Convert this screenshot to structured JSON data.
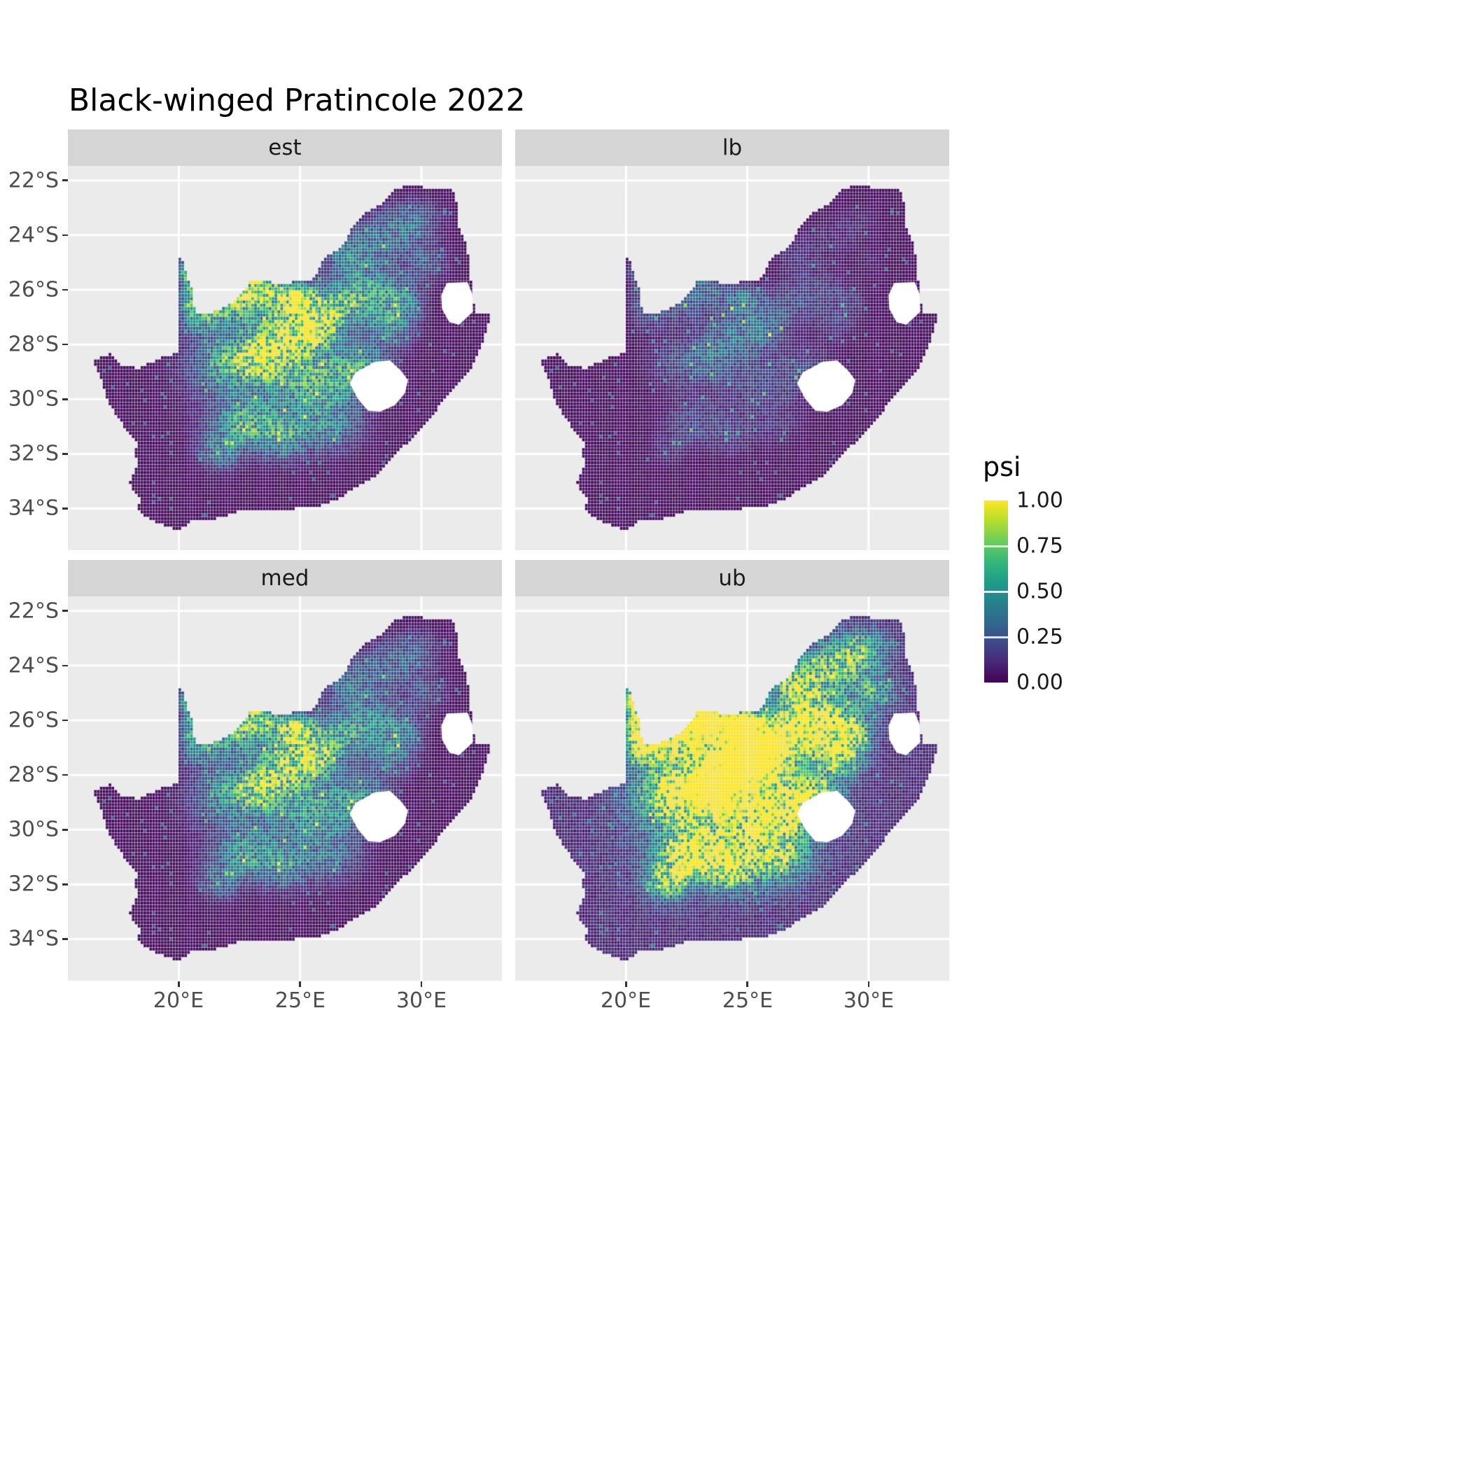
{
  "chart_data": {
    "type": "heatmap",
    "title": "Black-winged Pratincole 2022",
    "facets": [
      {
        "label": "est"
      },
      {
        "label": "lb"
      },
      {
        "label": "med"
      },
      {
        "label": "ub"
      }
    ],
    "legend": {
      "title": "psi",
      "ticks": [
        "1.00",
        "0.75",
        "0.50",
        "0.25",
        "0.00"
      ],
      "tick_values": [
        1.0,
        0.75,
        0.5,
        0.25,
        0.0
      ]
    },
    "x_ticks": {
      "labels": [
        "20°E",
        "25°E",
        "30°E"
      ],
      "lons": [
        20,
        25,
        30
      ]
    },
    "y_ticks": {
      "labels": [
        "22°S",
        "24°S",
        "26°S",
        "28°S",
        "30°S",
        "32°S",
        "34°S"
      ],
      "lats": [
        -22,
        -24,
        -26,
        -28,
        -30,
        -32,
        -34
      ]
    },
    "axes": {
      "lon_min": 15.43,
      "lon_max": 33.32,
      "lat_top": -21.47,
      "lat_bottom": -35.52,
      "grid": true,
      "legend_position": "right"
    },
    "colors": {
      "panel_bg": "#EBEBEB",
      "strip_bg": "#D5D5D5",
      "grid": "#FFFFFF",
      "axis_text": "#4D4D4D",
      "hole_fill": "#FFFFFF",
      "viridis": [
        "#440154",
        "#482878",
        "#3E4A89",
        "#31688E",
        "#26828E",
        "#1F9E89",
        "#35B779",
        "#6DCD59",
        "#B4DE2C",
        "#FDE725"
      ]
    },
    "map": {
      "region": "South Africa",
      "outer": [
        [
          16.45,
          -28.58
        ],
        [
          17.15,
          -28.35
        ],
        [
          17.6,
          -28.72
        ],
        [
          18.3,
          -28.88
        ],
        [
          19.2,
          -28.52
        ],
        [
          19.99,
          -28.32
        ],
        [
          19.99,
          -24.77
        ],
        [
          20.18,
          -25.0
        ],
        [
          20.4,
          -25.6
        ],
        [
          20.6,
          -26.15
        ],
        [
          20.68,
          -26.85
        ],
        [
          21.4,
          -26.83
        ],
        [
          22.0,
          -26.62
        ],
        [
          22.65,
          -26.1
        ],
        [
          23.0,
          -25.62
        ],
        [
          23.5,
          -25.68
        ],
        [
          24.1,
          -25.78
        ],
        [
          24.8,
          -25.72
        ],
        [
          25.35,
          -25.68
        ],
        [
          25.7,
          -25.45
        ],
        [
          25.95,
          -24.9
        ],
        [
          26.45,
          -24.6
        ],
        [
          26.9,
          -24.25
        ],
        [
          27.2,
          -23.65
        ],
        [
          27.7,
          -23.2
        ],
        [
          28.3,
          -22.9
        ],
        [
          28.95,
          -22.32
        ],
        [
          29.45,
          -22.18
        ],
        [
          30.1,
          -22.25
        ],
        [
          30.7,
          -22.3
        ],
        [
          31.3,
          -22.38
        ],
        [
          31.5,
          -22.95
        ],
        [
          31.55,
          -23.65
        ],
        [
          31.8,
          -24.2
        ],
        [
          31.95,
          -24.75
        ],
        [
          32.0,
          -25.3
        ],
        [
          32.08,
          -25.85
        ],
        [
          32.15,
          -26.3
        ],
        [
          32.22,
          -26.85
        ],
        [
          32.9,
          -26.85
        ],
        [
          32.55,
          -27.95
        ],
        [
          32.25,
          -28.55
        ],
        [
          31.85,
          -29.15
        ],
        [
          31.05,
          -29.87
        ],
        [
          30.35,
          -30.75
        ],
        [
          29.65,
          -31.4
        ],
        [
          28.85,
          -32.1
        ],
        [
          28.1,
          -32.85
        ],
        [
          27.2,
          -33.3
        ],
        [
          26.45,
          -33.72
        ],
        [
          25.65,
          -33.95
        ],
        [
          24.85,
          -34.0
        ],
        [
          24.0,
          -34.12
        ],
        [
          23.3,
          -34.08
        ],
        [
          22.55,
          -34.05
        ],
        [
          22.1,
          -34.22
        ],
        [
          21.35,
          -34.42
        ],
        [
          20.55,
          -34.46
        ],
        [
          20.0,
          -34.82
        ],
        [
          19.35,
          -34.6
        ],
        [
          18.85,
          -34.4
        ],
        [
          18.45,
          -34.2
        ],
        [
          18.3,
          -33.95
        ],
        [
          18.42,
          -33.7
        ],
        [
          18.22,
          -33.4
        ],
        [
          17.95,
          -33.1
        ],
        [
          18.12,
          -32.75
        ],
        [
          18.3,
          -32.5
        ],
        [
          18.22,
          -31.9
        ],
        [
          18.3,
          -31.55
        ],
        [
          17.85,
          -31.15
        ],
        [
          17.55,
          -30.75
        ],
        [
          17.2,
          -30.25
        ],
        [
          17.0,
          -29.85
        ],
        [
          16.85,
          -29.35
        ],
        [
          16.6,
          -28.9
        ]
      ],
      "holes": [
        [
          [
            27.55,
            -28.9
          ],
          [
            28.1,
            -28.63
          ],
          [
            28.7,
            -28.58
          ],
          [
            29.15,
            -28.95
          ],
          [
            29.45,
            -29.3
          ],
          [
            29.32,
            -29.78
          ],
          [
            28.9,
            -30.22
          ],
          [
            28.3,
            -30.45
          ],
          [
            27.8,
            -30.42
          ],
          [
            27.38,
            -29.98
          ],
          [
            27.05,
            -29.42
          ],
          [
            27.28,
            -29.02
          ]
        ],
        [
          [
            31.05,
            -25.75
          ],
          [
            31.9,
            -25.72
          ],
          [
            32.1,
            -26.15
          ],
          [
            32.13,
            -26.8
          ],
          [
            31.55,
            -27.28
          ],
          [
            31.15,
            -27.18
          ],
          [
            30.85,
            -26.7
          ],
          [
            30.82,
            -26.2
          ]
        ]
      ]
    },
    "field": {
      "cell_deg": 0.12,
      "blobs": [
        [
          23.3,
          -25.95,
          0.9,
          0.55,
          0.95
        ],
        [
          24.9,
          -26.35,
          0.85,
          0.55,
          0.9
        ],
        [
          25.6,
          -27.5,
          1.0,
          0.8,
          0.8
        ],
        [
          24.2,
          -27.4,
          1.2,
          0.9,
          0.7
        ],
        [
          23.6,
          -28.5,
          1.3,
          0.8,
          0.6
        ],
        [
          26.6,
          -26.6,
          1.0,
          0.8,
          0.55
        ],
        [
          27.9,
          -26.0,
          1.2,
          0.9,
          0.45
        ],
        [
          28.6,
          -27.3,
          1.0,
          0.8,
          0.4
        ],
        [
          22.3,
          -26.6,
          0.9,
          0.6,
          0.6
        ],
        [
          21.0,
          -26.9,
          0.9,
          0.7,
          0.5
        ],
        [
          20.3,
          -25.4,
          0.35,
          0.7,
          0.55
        ],
        [
          20.7,
          -26.4,
          0.5,
          0.6,
          0.5
        ],
        [
          26.9,
          -24.7,
          1.2,
          0.8,
          0.35
        ],
        [
          28.6,
          -24.0,
          1.3,
          0.9,
          0.3
        ],
        [
          29.8,
          -23.4,
          1.0,
          0.7,
          0.25
        ],
        [
          27.6,
          -28.9,
          1.1,
          0.8,
          0.45
        ],
        [
          25.8,
          -29.3,
          1.5,
          1.0,
          0.4
        ],
        [
          24.0,
          -29.8,
          3.2,
          1.8,
          0.26
        ],
        [
          22.7,
          -30.9,
          1.1,
          0.8,
          0.45
        ],
        [
          24.3,
          -31.4,
          1.0,
          0.8,
          0.4
        ],
        [
          21.7,
          -31.9,
          0.9,
          0.7,
          0.35
        ],
        [
          26.3,
          -31.0,
          1.2,
          0.9,
          0.3
        ],
        [
          29.3,
          -26.5,
          0.8,
          0.7,
          0.35
        ],
        [
          30.2,
          -25.0,
          0.9,
          0.7,
          0.25
        ],
        [
          22.0,
          -28.6,
          1.5,
          1.0,
          0.42
        ]
      ],
      "facet_params": [
        {
          "gain": 1.0,
          "off": 0.0
        },
        {
          "gain": 0.36,
          "off": -0.03
        },
        {
          "gain": 0.82,
          "off": 0.0
        },
        {
          "gain": 1.85,
          "off": 0.1
        }
      ]
    }
  }
}
